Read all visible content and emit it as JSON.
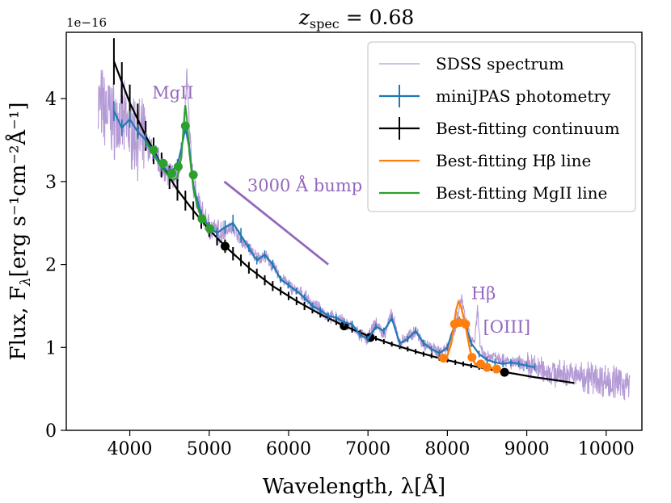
{
  "chart_data": {
    "type": "line",
    "title": "z_spec = 0.68",
    "title_main": "z",
    "title_sub": "spec",
    "title_rest": " = 0.68",
    "xlabel": "Wavelength, λ[Å]",
    "ylabel": "Flux, F_λ[erg s⁻¹cm⁻²Å⁻¹]",
    "ylabel_main": "Flux, F",
    "ylabel_sub": "λ",
    "ylabel_rest": "[erg s⁻¹cm⁻²Å⁻¹]",
    "y_multiplier": "1e−16",
    "xlim": [
      3200,
      10450
    ],
    "ylim": [
      0,
      4.8
    ],
    "xticks": [
      4000,
      5000,
      6000,
      7000,
      8000,
      9000,
      10000
    ],
    "xtick_labels": [
      "4000",
      "5000",
      "6000",
      "7000",
      "8000",
      "9000",
      "10000"
    ],
    "yticks": [
      0,
      1,
      2,
      3,
      4
    ],
    "ytick_labels": [
      "0",
      "1",
      "2",
      "3",
      "4"
    ],
    "grid": false,
    "legend_position": "top-right",
    "colors": {
      "sdss": "#b59bd6",
      "minijpas": "#1f77b4",
      "continuum": "#000000",
      "hbeta": "#ff7f0e",
      "mgii": "#2ca02c",
      "annotation": "#9467bd"
    },
    "legend": [
      {
        "label": "SDSS spectrum",
        "key": "sdss",
        "style": "line"
      },
      {
        "label": "miniJPAS photometry",
        "key": "minijpas",
        "style": "errorbar"
      },
      {
        "label": "Best-fitting continuum",
        "key": "continuum",
        "style": "errorbar"
      },
      {
        "label": "Best-fitting Hβ line",
        "key": "hbeta",
        "style": "line"
      },
      {
        "label": "Best-fitting MgII line",
        "key": "mgii",
        "style": "line"
      }
    ],
    "annotations": [
      {
        "text": "MgII",
        "x": 4280,
        "y": 4.0
      },
      {
        "text": "3000 Å bump",
        "x": 5480,
        "y": 2.88
      },
      {
        "text": "Hβ",
        "x": 8300,
        "y": 1.58
      },
      {
        "text": "[OIII]",
        "x": 8450,
        "y": 1.18
      }
    ],
    "bump_line": {
      "x": [
        5190,
        6500
      ],
      "y": [
        3.0,
        2.0
      ]
    },
    "continuum": {
      "x": [
        3800,
        4000,
        4200,
        4400,
        4600,
        4800,
        5000,
        5200,
        5500,
        5800,
        6100,
        6400,
        6700,
        7000,
        7300,
        7600,
        7900,
        8200,
        8500,
        8800,
        9100,
        9400,
        9600
      ],
      "y": [
        4.45,
        3.95,
        3.55,
        3.2,
        2.9,
        2.65,
        2.42,
        2.22,
        1.96,
        1.74,
        1.56,
        1.4,
        1.26,
        1.14,
        1.04,
        0.95,
        0.87,
        0.8,
        0.74,
        0.69,
        0.64,
        0.6,
        0.57
      ],
      "errorbars_x": [
        3800,
        3900,
        4000,
        4100,
        4200,
        4300,
        4400,
        4500,
        4600,
        4700,
        4800,
        4900,
        5000,
        5100,
        5200,
        5300,
        5400,
        5500,
        5600,
        5700,
        5800,
        5900,
        6000,
        6100,
        6200,
        6300,
        6400,
        6500,
        6600,
        6700,
        6800,
        6900,
        7000,
        7100,
        7200,
        7300,
        7400,
        7500,
        7600,
        7700,
        7800,
        7900,
        8000,
        8100,
        8200,
        8300,
        8400,
        8500,
        8600,
        8700
      ],
      "errorbars_y": [
        4.45,
        4.19,
        3.95,
        3.74,
        3.55,
        3.37,
        3.2,
        3.05,
        2.9,
        2.77,
        2.65,
        2.53,
        2.42,
        2.32,
        2.22,
        2.13,
        2.05,
        1.96,
        1.89,
        1.81,
        1.74,
        1.68,
        1.62,
        1.56,
        1.5,
        1.45,
        1.4,
        1.35,
        1.31,
        1.26,
        1.22,
        1.18,
        1.14,
        1.11,
        1.07,
        1.04,
        1.01,
        0.98,
        0.95,
        0.92,
        0.9,
        0.87,
        0.85,
        0.82,
        0.8,
        0.78,
        0.76,
        0.74,
        0.72,
        0.7
      ],
      "errorbars_err": [
        0.28,
        0.25,
        0.22,
        0.2,
        0.18,
        0.16,
        0.15,
        0.14,
        0.13,
        0.12,
        0.11,
        0.1,
        0.09,
        0.09,
        0.08,
        0.08,
        0.07,
        0.07,
        0.06,
        0.06,
        0.06,
        0.05,
        0.05,
        0.05,
        0.05,
        0.04,
        0.04,
        0.04,
        0.04,
        0.04,
        0.04,
        0.03,
        0.03,
        0.03,
        0.03,
        0.03,
        0.03,
        0.03,
        0.03,
        0.03,
        0.03,
        0.03,
        0.03,
        0.03,
        0.03,
        0.03,
        0.03,
        0.03,
        0.03,
        0.03
      ],
      "points_x": [
        5200,
        6700,
        7030,
        8720
      ],
      "points_y": [
        2.22,
        1.26,
        1.12,
        0.7
      ]
    },
    "minijpas": {
      "x": [
        3800,
        3900,
        4000,
        4100,
        4200,
        4300,
        4400,
        4500,
        4600,
        4650,
        4700,
        4750,
        4800,
        4900,
        5000,
        5100,
        5200,
        5300,
        5400,
        5500,
        5600,
        5700,
        5800,
        5900,
        6000,
        6100,
        6200,
        6300,
        6400,
        6500,
        6600,
        6700,
        6800,
        6900,
        7000,
        7100,
        7200,
        7300,
        7400,
        7500,
        7600,
        7700,
        7800,
        7900,
        8000,
        8100,
        8150,
        8200,
        8250,
        8300,
        8400,
        8500,
        8600,
        8700,
        8800,
        8900,
        9000,
        9100
      ],
      "y": [
        3.85,
        3.65,
        3.75,
        3.6,
        3.5,
        3.35,
        3.2,
        3.1,
        3.2,
        3.4,
        3.65,
        3.4,
        2.95,
        2.6,
        2.45,
        2.38,
        2.45,
        2.5,
        2.35,
        2.2,
        2.05,
        2.12,
        2.0,
        1.82,
        1.75,
        1.68,
        1.6,
        1.5,
        1.45,
        1.38,
        1.36,
        1.3,
        1.28,
        1.15,
        1.1,
        1.25,
        1.2,
        1.35,
        1.05,
        1.1,
        1.2,
        1.05,
        0.98,
        0.93,
        1.0,
        1.3,
        1.33,
        1.3,
        1.2,
        1.05,
        0.92,
        0.85,
        0.82,
        0.8,
        0.82,
        0.8,
        0.78,
        0.76
      ],
      "err": [
        0.12,
        0.1,
        0.1,
        0.09,
        0.09,
        0.08,
        0.08,
        0.07,
        0.07,
        0.07,
        0.07,
        0.07,
        0.06,
        0.06,
        0.06,
        0.06,
        0.08,
        0.1,
        0.09,
        0.05,
        0.05,
        0.05,
        0.05,
        0.04,
        0.04,
        0.04,
        0.04,
        0.04,
        0.04,
        0.04,
        0.04,
        0.04,
        0.04,
        0.04,
        0.04,
        0.04,
        0.04,
        0.04,
        0.04,
        0.04,
        0.04,
        0.04,
        0.04,
        0.04,
        0.04,
        0.04,
        0.04,
        0.04,
        0.04,
        0.04,
        0.04,
        0.04,
        0.04,
        0.04,
        0.04,
        0.04,
        0.04,
        0.04
      ]
    },
    "mgii_line": {
      "x": [
        4200,
        4300,
        4400,
        4500,
        4550,
        4600,
        4650,
        4680,
        4700,
        4720,
        4750,
        4800,
        4850,
        4900,
        4950,
        5000,
        5050
      ],
      "y": [
        3.48,
        3.32,
        3.17,
        3.05,
        3.02,
        3.05,
        3.3,
        3.7,
        3.92,
        3.75,
        3.35,
        2.92,
        2.7,
        2.57,
        2.5,
        2.44,
        2.4
      ],
      "points_x": [
        4300,
        4420,
        4530,
        4610,
        4700,
        4800,
        4910,
        5010
      ],
      "points_y": [
        3.38,
        3.22,
        3.1,
        3.18,
        3.67,
        3.08,
        2.55,
        2.43
      ]
    },
    "hbeta_line": {
      "x": [
        7880,
        7950,
        8000,
        8050,
        8080,
        8110,
        8140,
        8170,
        8200,
        8230,
        8260,
        8290,
        8320,
        8350,
        8400,
        8450,
        8500,
        8550,
        8600,
        8650
      ],
      "y": [
        0.88,
        0.86,
        0.9,
        1.05,
        1.25,
        1.45,
        1.55,
        1.5,
        1.38,
        1.25,
        1.1,
        0.95,
        0.86,
        0.8,
        0.78,
        0.77,
        0.76,
        0.75,
        0.74,
        0.73
      ],
      "points_x": [
        7950,
        8090,
        8150,
        8230,
        8310,
        8420,
        8500,
        8620
      ],
      "points_y": [
        0.87,
        1.28,
        1.3,
        1.28,
        0.88,
        0.8,
        0.76,
        0.74
      ]
    },
    "sdss_anchor": {
      "x": [
        3600,
        3700,
        3800,
        3900,
        4000,
        4100,
        4200,
        4300,
        4400,
        4500,
        4600,
        4650,
        4700,
        4720,
        4750,
        4800,
        4900,
        5000,
        5100,
        5200,
        5300,
        5400,
        5500,
        5600,
        5700,
        5800,
        5900,
        6000,
        6100,
        6200,
        6300,
        6400,
        6500,
        6600,
        6700,
        6800,
        6900,
        7000,
        7100,
        7200,
        7300,
        7400,
        7500,
        7600,
        7700,
        7800,
        7900,
        8000,
        8100,
        8150,
        8180,
        8220,
        8260,
        8300,
        8350,
        8380,
        8420,
        8500,
        8600,
        8700,
        8800,
        8900,
        9000,
        9100,
        9200,
        9300,
        9400,
        9500,
        9600,
        9700,
        9800,
        9900,
        10000,
        10100,
        10200,
        10300
      ],
      "y": [
        3.95,
        3.85,
        3.75,
        3.7,
        3.65,
        3.55,
        3.45,
        3.35,
        3.2,
        3.1,
        3.05,
        3.35,
        3.9,
        4.3,
        3.6,
        2.95,
        2.62,
        2.45,
        2.38,
        2.42,
        2.45,
        2.3,
        2.2,
        2.08,
        2.1,
        1.98,
        1.85,
        1.75,
        1.68,
        1.62,
        1.52,
        1.45,
        1.38,
        1.35,
        1.3,
        1.25,
        1.15,
        1.1,
        1.3,
        1.15,
        1.4,
        1.05,
        1.12,
        1.2,
        1.05,
        0.98,
        0.95,
        1.0,
        1.25,
        1.5,
        1.6,
        1.35,
        1.2,
        1.05,
        1.1,
        1.45,
        0.95,
        0.88,
        0.9,
        0.86,
        0.8,
        0.82,
        0.78,
        0.76,
        0.72,
        0.7,
        0.68,
        0.68,
        0.66,
        0.66,
        0.64,
        0.62,
        0.6,
        0.58,
        0.56,
        0.55
      ]
    }
  }
}
